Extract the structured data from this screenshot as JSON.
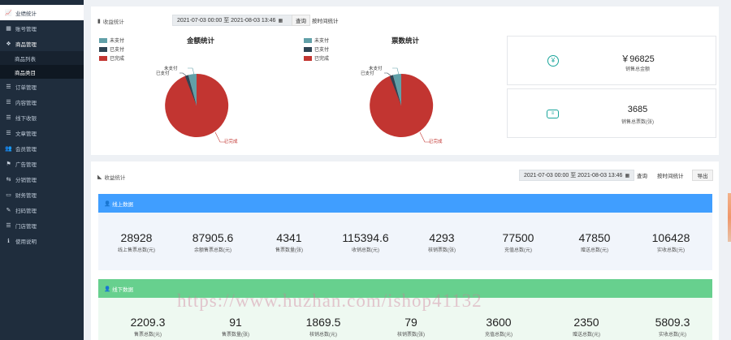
{
  "sidebar": {
    "items": [
      {
        "icon": "line-chart-icon",
        "label": "业绩统计",
        "active": true
      },
      {
        "icon": "grid-icon",
        "label": "账号管理"
      },
      {
        "icon": "cubes-icon",
        "label": "商品管理",
        "open": true
      },
      {
        "icon": "",
        "label": "商品列表",
        "sub": true
      },
      {
        "icon": "",
        "label": "商品类目",
        "sub": true,
        "selected": true
      },
      {
        "icon": "list-icon",
        "label": "订单管理"
      },
      {
        "icon": "list-icon",
        "label": "内容管理"
      },
      {
        "icon": "list-icon",
        "label": "线下收银"
      },
      {
        "icon": "list-icon",
        "label": "文章管理"
      },
      {
        "icon": "users-icon",
        "label": "会员管理"
      },
      {
        "icon": "flag-icon",
        "label": "广告管理"
      },
      {
        "icon": "share-icon",
        "label": "分销管理"
      },
      {
        "icon": "money-icon",
        "label": "财务管理"
      },
      {
        "icon": "wrench-icon",
        "label": "扫码管理"
      },
      {
        "icon": "list-icon",
        "label": "门店管理"
      },
      {
        "icon": "info-icon",
        "label": "使用说明"
      }
    ]
  },
  "revenue": {
    "title": "收益统计",
    "date_range": "2021-07-03 00:00 至 2021-08-03 13:46",
    "search_label": "查询",
    "today_label": "按时间统计",
    "amount_chart": {
      "title": "金额统计",
      "legend": [
        "未支付",
        "已支付",
        "已完成"
      ],
      "colors": [
        "#61a0a8",
        "#2f4554",
        "#c23531"
      ],
      "labels": {
        "unpaid": "未支付",
        "paid": "已支付",
        "done": "已完成"
      }
    },
    "count_chart": {
      "title": "票数统计",
      "legend": [
        "未支付",
        "已支付",
        "已完成"
      ],
      "colors": [
        "#61a0a8",
        "#2f4554",
        "#c23531"
      ],
      "labels": {
        "unpaid": "未支付",
        "paid": "已支付",
        "done": "已完成"
      }
    },
    "total_amount": {
      "value": "￥96825",
      "label": "销售总金额"
    },
    "total_count": {
      "value": "3685",
      "label": "销售总票数(张)"
    }
  },
  "income": {
    "title": "收益统计",
    "date_range": "2021-07-03 00:00 至 2021-08-03 13:46",
    "search_label": "查询",
    "time_label": "按时间统计",
    "export_label": "导出",
    "online": {
      "header": "线上数据",
      "metrics": [
        {
          "value": "28928",
          "label": "线上售票总数(元)"
        },
        {
          "value": "87905.6",
          "label": "余额售票总数(元)"
        },
        {
          "value": "4341",
          "label": "售票数量(张)"
        },
        {
          "value": "115394.6",
          "label": "收销总数(元)"
        },
        {
          "value": "4293",
          "label": "核销票数(张)"
        },
        {
          "value": "77500",
          "label": "充值总数(元)"
        },
        {
          "value": "47850",
          "label": "赠送总数(元)"
        },
        {
          "value": "106428",
          "label": "实收总数(元)"
        }
      ]
    },
    "offline": {
      "header": "线下数据",
      "metrics": [
        {
          "value": "2209.3",
          "label": "售票总数(元)"
        },
        {
          "value": "91",
          "label": "售票数量(张)"
        },
        {
          "value": "1869.5",
          "label": "核销总数(元)"
        },
        {
          "value": "79",
          "label": "核销票数(张)"
        },
        {
          "value": "3600",
          "label": "充值总数(元)"
        },
        {
          "value": "2350",
          "label": "赠送总数(元)"
        },
        {
          "value": "5809.3",
          "label": "实收总数(元)"
        }
      ]
    }
  },
  "watermark": "https://www.huzhan.com/ishop41132"
}
